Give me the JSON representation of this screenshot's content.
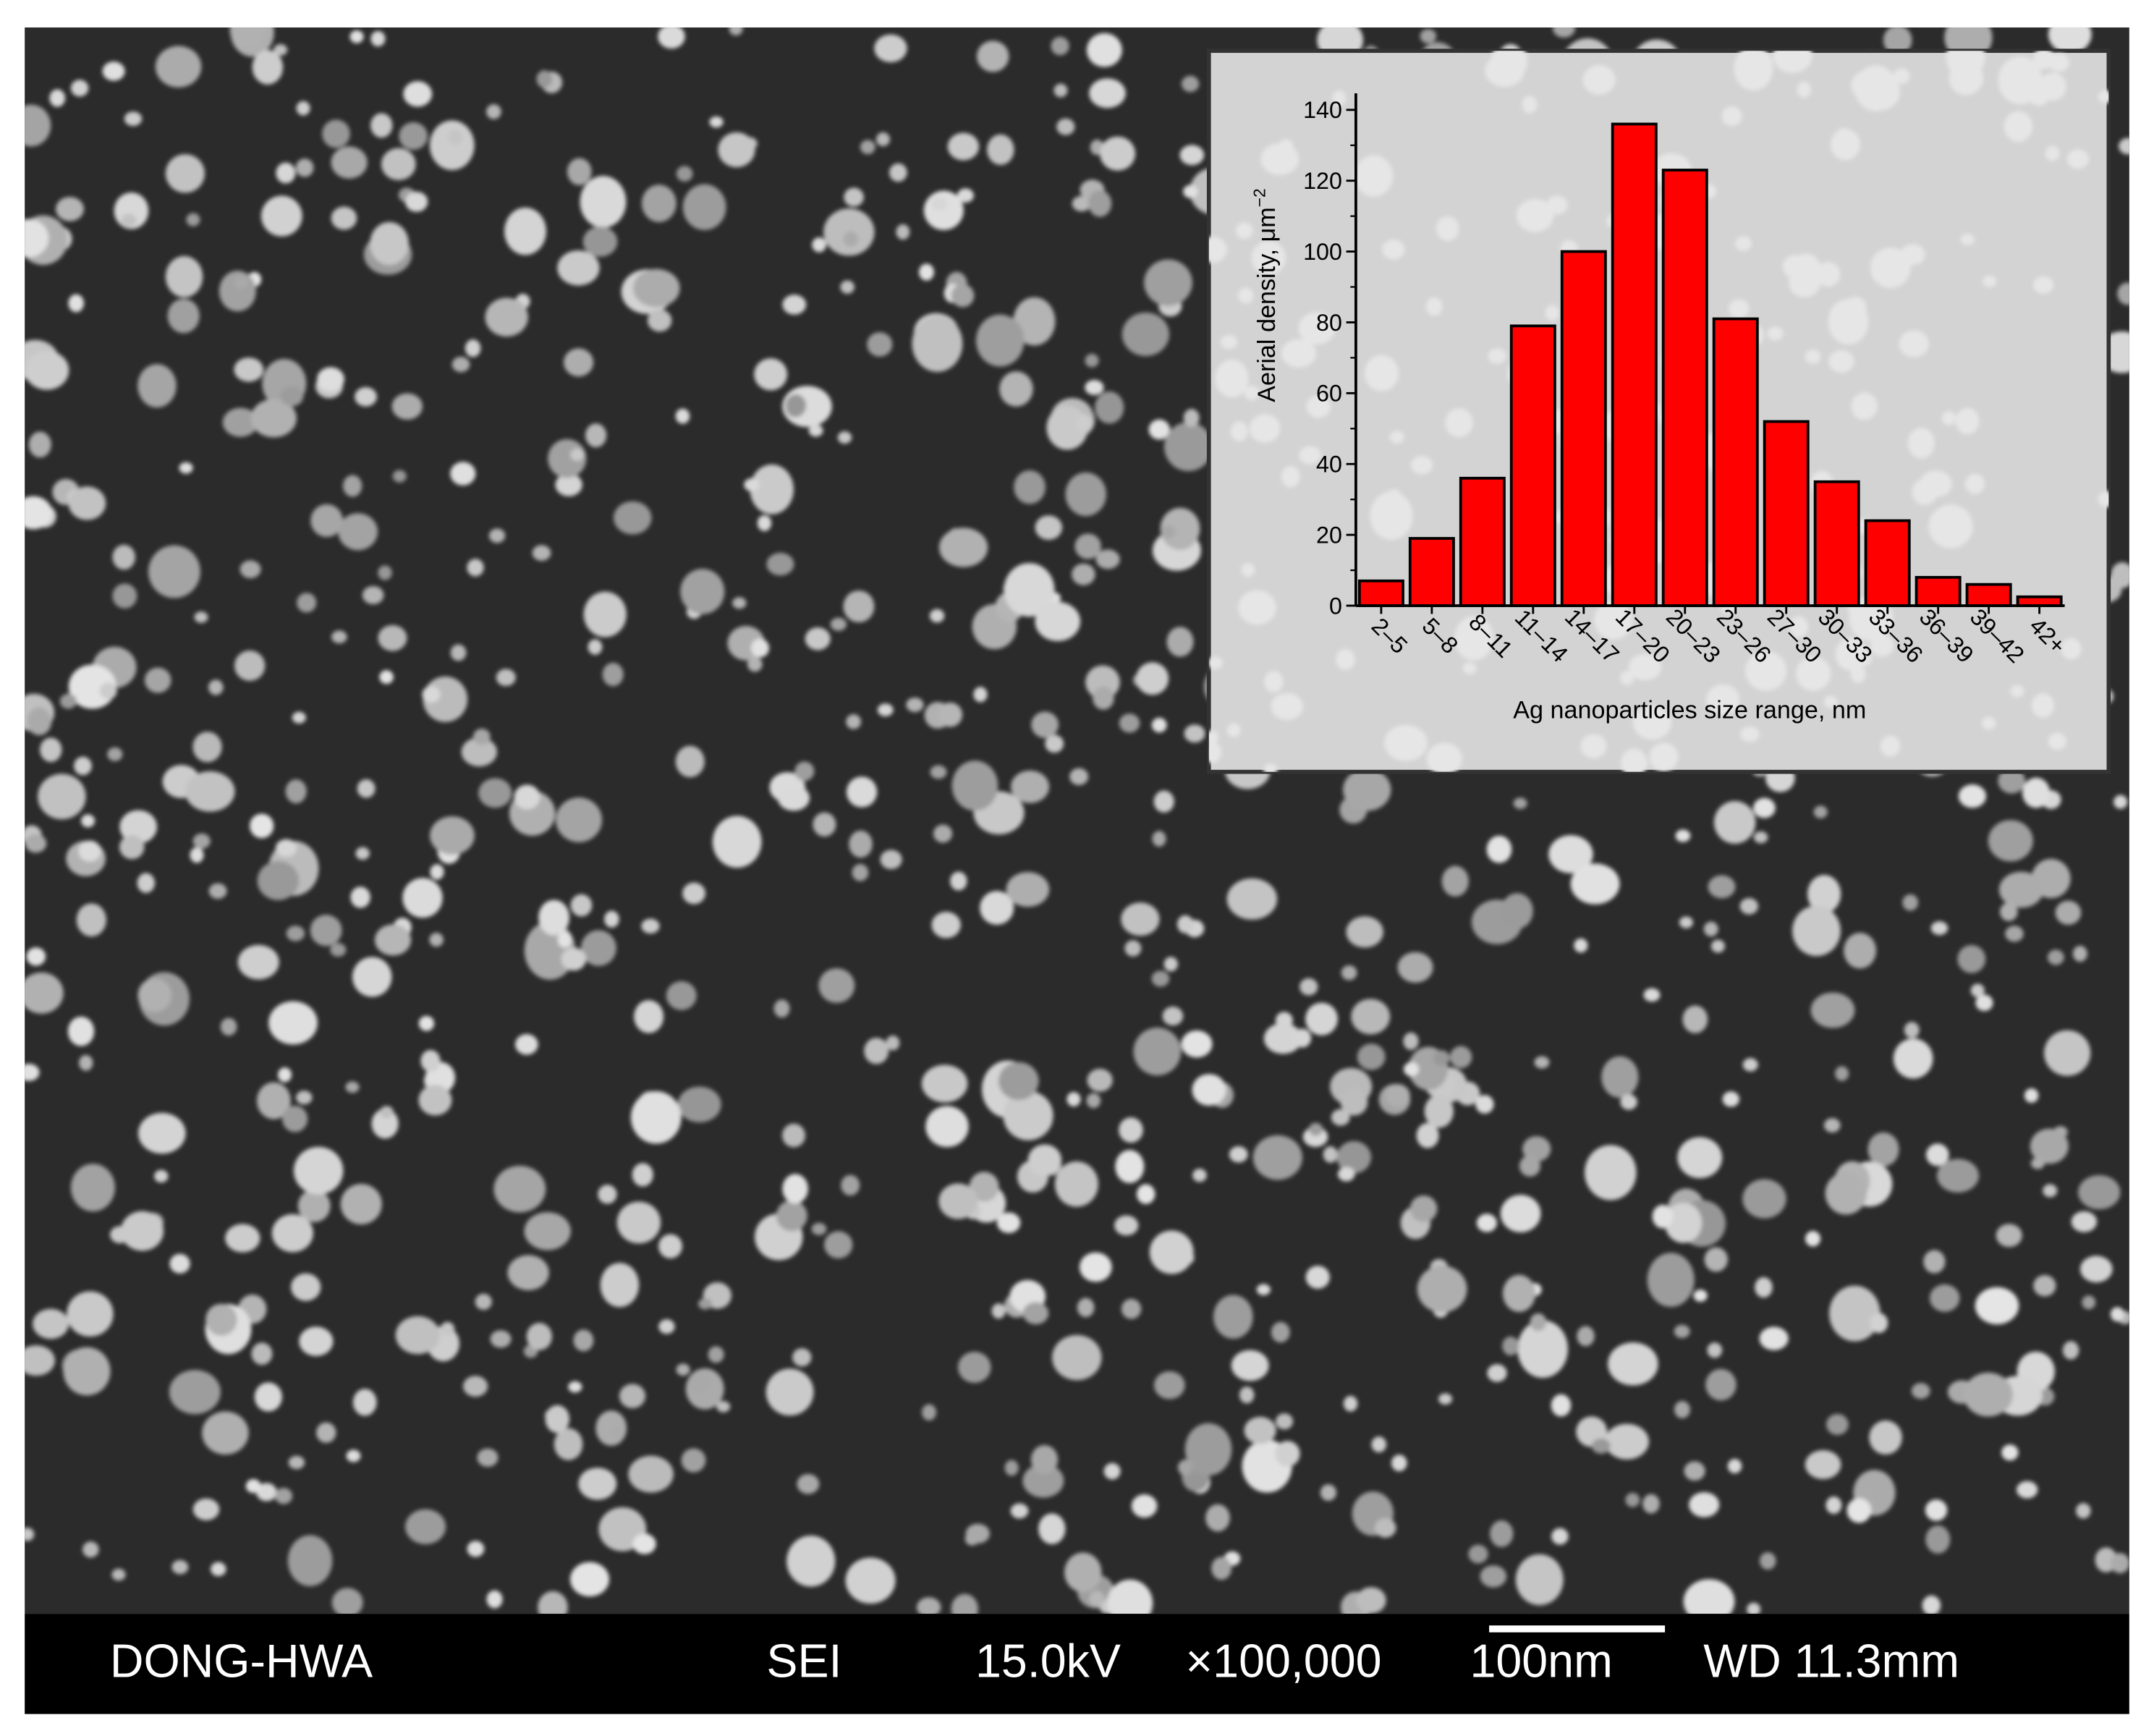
{
  "chart_data": {
    "type": "bar",
    "xlabel": "Ag nanoparticles size range, nm",
    "ylabel": "Aerial density, μm",
    "ylabel_superscript": "−2",
    "categories": [
      "2–5",
      "5–8",
      "8–11",
      "11–14",
      "14–17",
      "17–20",
      "20–23",
      "23–26",
      "27–30",
      "30–33",
      "33–36",
      "36–39",
      "39–42",
      "42+"
    ],
    "values": [
      7,
      19,
      36,
      79,
      100,
      136,
      123,
      81,
      52,
      35,
      24,
      8,
      6,
      2.5
    ],
    "color": "#ff0000",
    "ylim": [
      0,
      140
    ],
    "yticks": [
      0,
      20,
      40,
      60,
      80,
      100,
      120,
      140
    ],
    "grid": false
  },
  "info_bar": {
    "operator": "DONG-HWA",
    "mode": "SEI",
    "voltage": "15.0kV",
    "magnification": "×100,000",
    "scale": "100nm",
    "working_distance": "WD 11.3mm"
  }
}
